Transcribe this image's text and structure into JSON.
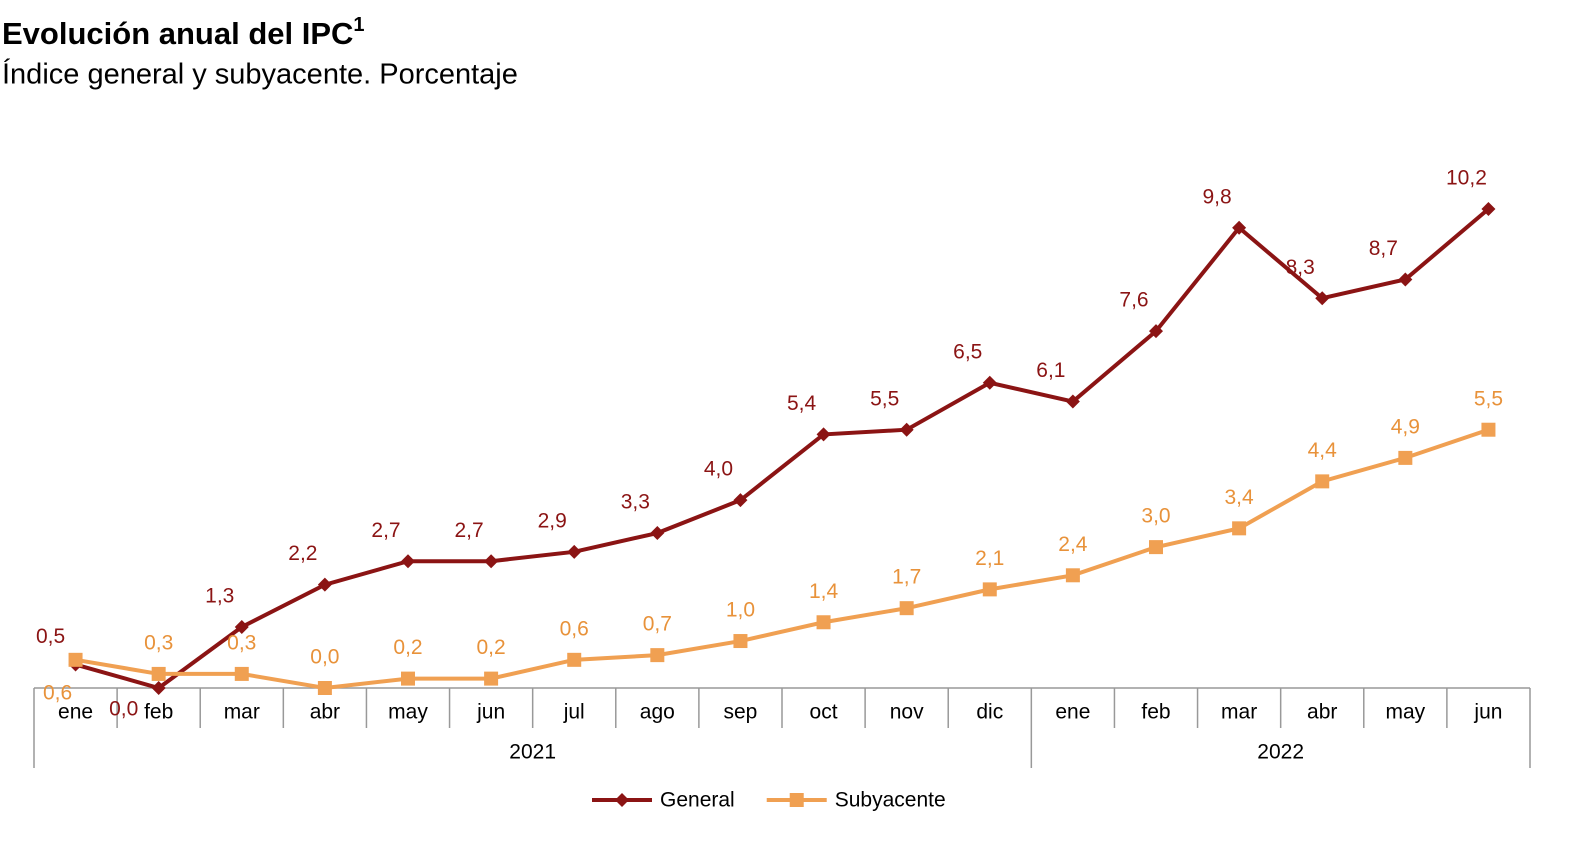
{
  "chart_data": {
    "type": "line",
    "title": "Evolución anual del IPC",
    "title_note": "1",
    "subtitle": "Índice general y subyacente. Porcentaje",
    "categories": [
      {
        "month": "ene",
        "year": "2021"
      },
      {
        "month": "feb",
        "year": "2021"
      },
      {
        "month": "mar",
        "year": "2021"
      },
      {
        "month": "abr",
        "year": "2021"
      },
      {
        "month": "may",
        "year": "2021"
      },
      {
        "month": "jun",
        "year": "2021"
      },
      {
        "month": "jul",
        "year": "2021"
      },
      {
        "month": "ago",
        "year": "2021"
      },
      {
        "month": "sep",
        "year": "2021"
      },
      {
        "month": "oct",
        "year": "2021"
      },
      {
        "month": "nov",
        "year": "2021"
      },
      {
        "month": "dic",
        "year": "2021"
      },
      {
        "month": "ene",
        "year": "2022"
      },
      {
        "month": "feb",
        "year": "2022"
      },
      {
        "month": "mar",
        "year": "2022"
      },
      {
        "month": "abr",
        "year": "2022"
      },
      {
        "month": "may",
        "year": "2022"
      },
      {
        "month": "jun",
        "year": "2022"
      }
    ],
    "series": [
      {
        "name": "General",
        "color": "#8b1414",
        "marker": "diamond",
        "values": [
          0.5,
          0.0,
          1.3,
          2.2,
          2.7,
          2.7,
          2.9,
          3.3,
          4.0,
          5.4,
          5.5,
          6.5,
          6.1,
          7.6,
          9.8,
          8.3,
          8.7,
          10.2
        ],
        "value_labels": [
          "0,5",
          "0,0",
          "1,3",
          "2,2",
          "2,7",
          "2,7",
          "2,9",
          "3,3",
          "4,0",
          "5,4",
          "5,5",
          "6,5",
          "6,1",
          "7,6",
          "9,8",
          "8,3",
          "8,7",
          "10,2"
        ]
      },
      {
        "name": "Subyacente",
        "color": "#f0a052",
        "label_color": "#e8923a",
        "marker": "square",
        "values": [
          0.6,
          0.3,
          0.3,
          0.0,
          0.2,
          0.2,
          0.6,
          0.7,
          1.0,
          1.4,
          1.7,
          2.1,
          2.4,
          3.0,
          3.4,
          4.4,
          4.9,
          5.5
        ],
        "value_labels": [
          "0,6",
          "0,3",
          "0,3",
          "0,0",
          "0,2",
          "0,2",
          "0,6",
          "0,7",
          "1,0",
          "1,4",
          "1,7",
          "2,1",
          "2,4",
          "3,0",
          "3,4",
          "4,4",
          "4,9",
          "5,5"
        ]
      }
    ],
    "legend": "bottom"
  }
}
